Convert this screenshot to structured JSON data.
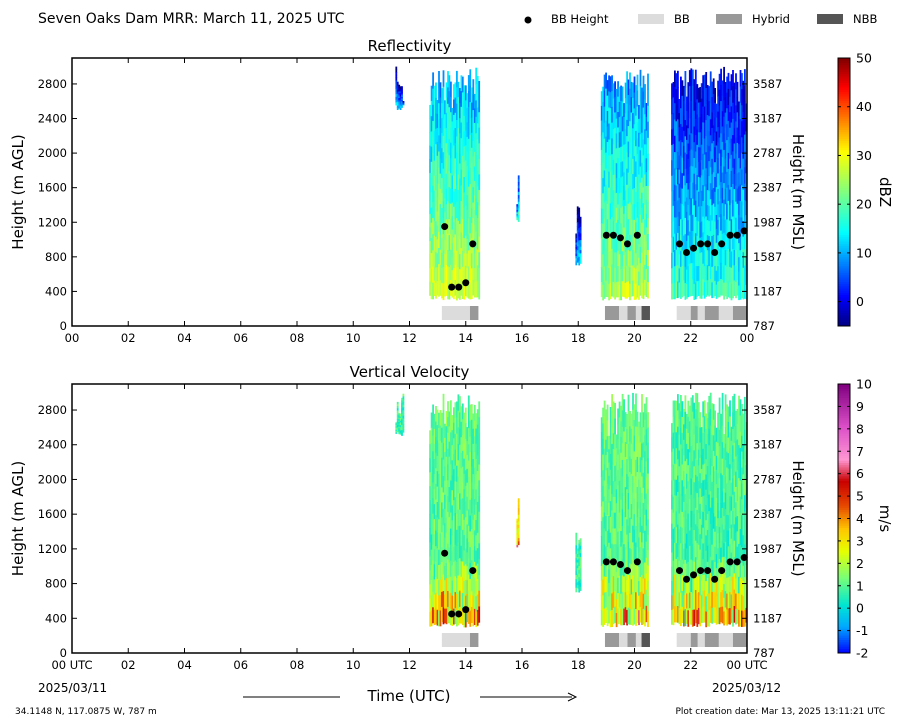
{
  "header": {
    "title": "Seven Oaks Dam MRR:  March 11, 2025 UTC",
    "legend": [
      {
        "label": "BB Height",
        "kind": "dot",
        "color": "#000000"
      },
      {
        "label": "BB",
        "kind": "box",
        "color": "#dcdcdc"
      },
      {
        "label": "Hybrid",
        "kind": "box",
        "color": "#999999"
      },
      {
        "label": "NBB",
        "kind": "box",
        "color": "#555555"
      }
    ]
  },
  "footer": {
    "location": "34.1148 N, 117.0875 W, 787 m",
    "creation": "Plot creation date: Mar 13, 2025 13:11:21 UTC",
    "xlabel": "Time (UTC)",
    "date_start": "2025/03/11",
    "date_end": "2025/03/12"
  },
  "chart_data": [
    {
      "type": "heatmap",
      "title": "Reflectivity",
      "ylabel": "Height (m AGL)",
      "ylabel_right": "Height (m MSL)",
      "x_ticks": [
        "00",
        "02",
        "04",
        "06",
        "08",
        "10",
        "12",
        "14",
        "16",
        "18",
        "20",
        "22",
        "00"
      ],
      "xlim": [
        0,
        24
      ],
      "ylim": [
        0,
        3100
      ],
      "y_ticks": [
        0,
        400,
        800,
        1200,
        1600,
        2000,
        2400,
        2800
      ],
      "y_ticks_right": [
        "787",
        "1187",
        "1587",
        "1987",
        "2387",
        "2787",
        "3187",
        "3587"
      ],
      "colorbar": {
        "label": "dBZ",
        "min": -5,
        "max": 50,
        "ticks": [
          "0",
          "10",
          "20",
          "30",
          "40",
          "50"
        ],
        "tick_values": [
          0,
          10,
          20,
          30,
          40,
          50
        ],
        "colormap": "jet"
      },
      "precip_segments": [
        {
          "start": 11.5,
          "end": 11.8,
          "top": 3000,
          "bottom": 2500,
          "core": 5
        },
        {
          "start": 12.7,
          "end": 14.5,
          "top": 3000,
          "bottom": 300,
          "core": 20
        },
        {
          "start": 15.8,
          "end": 15.9,
          "top": 1900,
          "bottom": 1200,
          "core": 10
        },
        {
          "start": 17.9,
          "end": 18.1,
          "top": 1400,
          "bottom": 700,
          "core": 5
        },
        {
          "start": 18.8,
          "end": 20.5,
          "top": 3000,
          "bottom": 300,
          "core": 18
        },
        {
          "start": 21.3,
          "end": 24.0,
          "top": 3000,
          "bottom": 300,
          "core": 10
        }
      ],
      "bb_heights": [
        {
          "t": 13.25,
          "h": 1150
        },
        {
          "t": 13.5,
          "h": 450
        },
        {
          "t": 13.75,
          "h": 450
        },
        {
          "t": 14.0,
          "h": 500
        },
        {
          "t": 14.25,
          "h": 950
        },
        {
          "t": 19.0,
          "h": 1050
        },
        {
          "t": 19.25,
          "h": 1050
        },
        {
          "t": 19.5,
          "h": 1020
        },
        {
          "t": 19.75,
          "h": 950
        },
        {
          "t": 20.1,
          "h": 1050
        },
        {
          "t": 21.6,
          "h": 950
        },
        {
          "t": 21.85,
          "h": 850
        },
        {
          "t": 22.1,
          "h": 900
        },
        {
          "t": 22.35,
          "h": 950
        },
        {
          "t": 22.6,
          "h": 950
        },
        {
          "t": 22.85,
          "h": 850
        },
        {
          "t": 23.1,
          "h": 950
        },
        {
          "t": 23.4,
          "h": 1050
        },
        {
          "t": 23.65,
          "h": 1050
        },
        {
          "t": 23.9,
          "h": 1100
        }
      ],
      "bb_types": [
        {
          "start": 13.15,
          "end": 14.15,
          "type": "BB"
        },
        {
          "start": 14.15,
          "end": 14.45,
          "type": "Hybrid"
        },
        {
          "start": 18.95,
          "end": 19.45,
          "type": "Hybrid"
        },
        {
          "start": 19.45,
          "end": 19.75,
          "type": "BB"
        },
        {
          "start": 19.75,
          "end": 20.05,
          "type": "Hybrid"
        },
        {
          "start": 20.05,
          "end": 20.25,
          "type": "BB"
        },
        {
          "start": 20.25,
          "end": 20.55,
          "type": "NBB"
        },
        {
          "start": 21.5,
          "end": 22.0,
          "type": "BB"
        },
        {
          "start": 22.0,
          "end": 22.25,
          "type": "Hybrid"
        },
        {
          "start": 22.25,
          "end": 22.5,
          "type": "BB"
        },
        {
          "start": 22.5,
          "end": 23.0,
          "type": "Hybrid"
        },
        {
          "start": 23.0,
          "end": 23.5,
          "type": "BB"
        },
        {
          "start": 23.5,
          "end": 24.0,
          "type": "Hybrid"
        }
      ]
    },
    {
      "type": "heatmap",
      "title": "Vertical Velocity",
      "ylabel": "Height (m AGL)",
      "ylabel_right": "Height (m MSL)",
      "x_ticks": [
        "00 UTC",
        "02",
        "04",
        "06",
        "08",
        "10",
        "12",
        "14",
        "16",
        "18",
        "20",
        "22",
        "00 UTC"
      ],
      "xlim": [
        0,
        24
      ],
      "ylim": [
        0,
        3100
      ],
      "y_ticks": [
        0,
        400,
        800,
        1200,
        1600,
        2000,
        2400,
        2800
      ],
      "y_ticks_right": [
        "787",
        "1187",
        "1587",
        "1987",
        "2387",
        "2787",
        "3187",
        "3587"
      ],
      "colorbar": {
        "label": "m/s",
        "min": -2,
        "max": 10,
        "ticks": [
          "-2",
          "-1",
          "0",
          "1",
          "2",
          "3",
          "4",
          "5",
          "6",
          "7",
          "8",
          "9",
          "10"
        ],
        "tick_values": [
          -2,
          -1,
          0,
          1,
          2,
          3,
          4,
          5,
          6,
          7,
          8,
          9,
          10
        ],
        "colormap": "velocity"
      },
      "precip_segments": [
        {
          "start": 11.5,
          "end": 11.8,
          "top": 3000,
          "bottom": 2500,
          "core": 1
        },
        {
          "start": 12.7,
          "end": 14.5,
          "top": 3000,
          "bottom": 300,
          "core": 1.5
        },
        {
          "start": 15.8,
          "end": 15.9,
          "top": 1900,
          "bottom": 1200,
          "core": 4
        },
        {
          "start": 17.9,
          "end": 18.1,
          "top": 1400,
          "bottom": 700,
          "core": 1
        },
        {
          "start": 18.8,
          "end": 20.5,
          "top": 3000,
          "bottom": 300,
          "core": 1.5
        },
        {
          "start": 21.3,
          "end": 24.0,
          "top": 3000,
          "bottom": 300,
          "core": 1.2
        }
      ],
      "bb_heights": [
        {
          "t": 13.25,
          "h": 1150
        },
        {
          "t": 13.5,
          "h": 450
        },
        {
          "t": 13.75,
          "h": 450
        },
        {
          "t": 14.0,
          "h": 500
        },
        {
          "t": 14.25,
          "h": 950
        },
        {
          "t": 19.0,
          "h": 1050
        },
        {
          "t": 19.25,
          "h": 1050
        },
        {
          "t": 19.5,
          "h": 1020
        },
        {
          "t": 19.75,
          "h": 950
        },
        {
          "t": 20.1,
          "h": 1050
        },
        {
          "t": 21.6,
          "h": 950
        },
        {
          "t": 21.85,
          "h": 850
        },
        {
          "t": 22.1,
          "h": 900
        },
        {
          "t": 22.35,
          "h": 950
        },
        {
          "t": 22.6,
          "h": 950
        },
        {
          "t": 22.85,
          "h": 850
        },
        {
          "t": 23.1,
          "h": 950
        },
        {
          "t": 23.4,
          "h": 1050
        },
        {
          "t": 23.65,
          "h": 1050
        },
        {
          "t": 23.9,
          "h": 1100
        }
      ],
      "bb_types": [
        {
          "start": 13.15,
          "end": 14.15,
          "type": "BB"
        },
        {
          "start": 14.15,
          "end": 14.45,
          "type": "Hybrid"
        },
        {
          "start": 18.95,
          "end": 19.45,
          "type": "Hybrid"
        },
        {
          "start": 19.45,
          "end": 19.75,
          "type": "BB"
        },
        {
          "start": 19.75,
          "end": 20.05,
          "type": "Hybrid"
        },
        {
          "start": 20.05,
          "end": 20.25,
          "type": "BB"
        },
        {
          "start": 20.25,
          "end": 20.55,
          "type": "NBB"
        },
        {
          "start": 21.5,
          "end": 22.0,
          "type": "BB"
        },
        {
          "start": 22.0,
          "end": 22.25,
          "type": "Hybrid"
        },
        {
          "start": 22.25,
          "end": 22.5,
          "type": "BB"
        },
        {
          "start": 22.5,
          "end": 23.0,
          "type": "Hybrid"
        },
        {
          "start": 23.0,
          "end": 23.5,
          "type": "BB"
        },
        {
          "start": 23.5,
          "end": 24.0,
          "type": "Hybrid"
        }
      ]
    }
  ]
}
